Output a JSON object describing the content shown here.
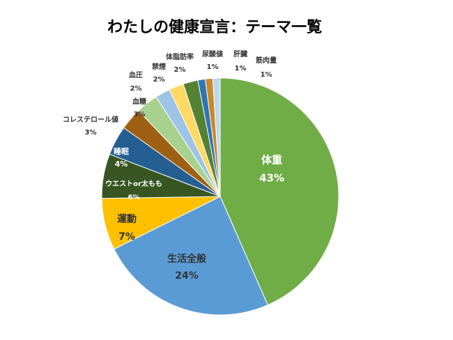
{
  "chart_data": {
    "type": "pie",
    "title": "わたしの健康宣言：テーマ一覧",
    "categories": [
      "体重",
      "生活全般",
      "運動",
      "ウエストor太もも",
      "睡眠",
      "コレステロール値",
      "血糖",
      "血圧",
      "禁煙",
      "体脂肪率",
      "尿酸値",
      "肝臓",
      "筋肉量"
    ],
    "values": [
      43,
      24,
      7,
      6,
      4,
      3,
      3,
      2,
      2,
      2,
      1,
      1,
      1
    ],
    "value_labels": [
      "43%",
      "24%",
      "7%",
      "6%",
      "4%",
      "3%",
      "3%",
      "2%",
      "2%",
      "2%",
      "1%",
      "1%",
      "1%"
    ],
    "colors": [
      "#70ad47",
      "#5b9bd5",
      "#ffc000",
      "#375623",
      "#255e91",
      "#9e6012",
      "#a9d18e",
      "#9dc3e6",
      "#ffd966",
      "#548235",
      "#2e75b6",
      "#c98a2c",
      "#bdd7ee"
    ]
  }
}
